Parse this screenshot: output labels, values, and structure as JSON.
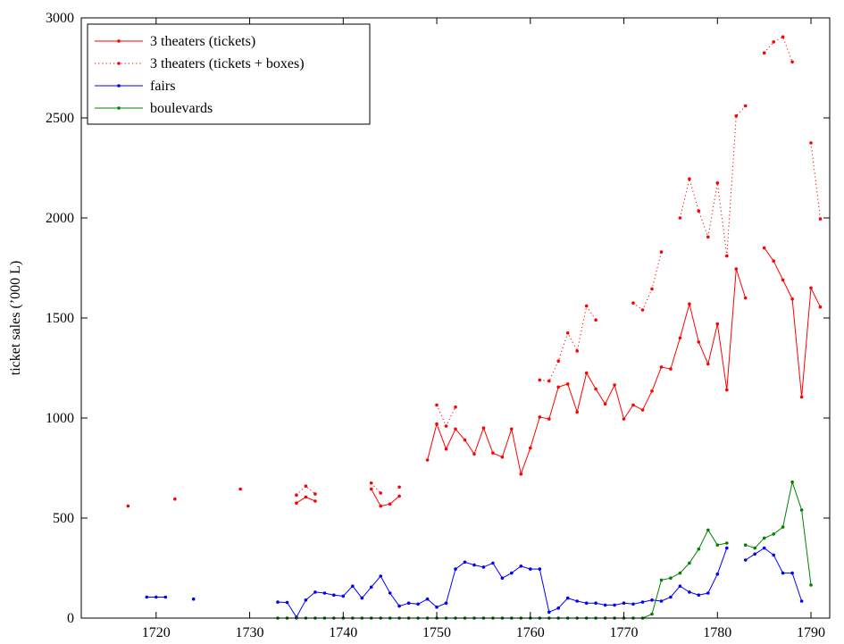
{
  "chart_data": {
    "type": "line",
    "title": "",
    "xlabel": "",
    "ylabel": "ticket sales (’000 L)",
    "xlim": [
      1712,
      1792
    ],
    "ylim": [
      0,
      3000
    ],
    "xticks": [
      1720,
      1730,
      1740,
      1750,
      1760,
      1770,
      1780,
      1790
    ],
    "yticks": [
      0,
      500,
      1000,
      1500,
      2000,
      2500,
      3000
    ],
    "grid": false,
    "legend_position": "top-left",
    "series": [
      {
        "name": "3 theaters (tickets)",
        "color": "#ff0000",
        "style": "solid",
        "points": [
          [
            1735,
            575
          ],
          [
            1736,
            605
          ],
          [
            1737,
            585
          ],
          [
            1743,
            645
          ],
          [
            1744,
            560
          ],
          [
            1745,
            570
          ],
          [
            1746,
            610
          ],
          [
            1749,
            790
          ],
          [
            1750,
            970
          ],
          [
            1751,
            845
          ],
          [
            1752,
            945
          ],
          [
            1753,
            890
          ],
          [
            1754,
            820
          ],
          [
            1755,
            950
          ],
          [
            1756,
            825
          ],
          [
            1757,
            805
          ],
          [
            1758,
            945
          ],
          [
            1759,
            720
          ],
          [
            1760,
            850
          ],
          [
            1761,
            1005
          ],
          [
            1762,
            995
          ],
          [
            1763,
            1155
          ],
          [
            1764,
            1170
          ],
          [
            1765,
            1030
          ],
          [
            1766,
            1225
          ],
          [
            1767,
            1145
          ],
          [
            1768,
            1070
          ],
          [
            1769,
            1165
          ],
          [
            1770,
            995
          ],
          [
            1771,
            1065
          ],
          [
            1772,
            1040
          ],
          [
            1773,
            1135
          ],
          [
            1774,
            1255
          ],
          [
            1775,
            1245
          ],
          [
            1776,
            1400
          ],
          [
            1777,
            1570
          ],
          [
            1778,
            1380
          ],
          [
            1779,
            1270
          ],
          [
            1780,
            1470
          ],
          [
            1781,
            1140
          ],
          [
            1782,
            1745
          ],
          [
            1783,
            1600
          ],
          [
            1785,
            1850
          ],
          [
            1786,
            1785
          ],
          [
            1787,
            1690
          ],
          [
            1788,
            1595
          ],
          [
            1789,
            1105
          ],
          [
            1790,
            1650
          ],
          [
            1791,
            1555
          ]
        ]
      },
      {
        "name": "3 theaters (tickets + boxes)",
        "color": "#ff0000",
        "style": "dotted",
        "points": [
          [
            1717,
            560
          ],
          [
            1722,
            595
          ],
          [
            1729,
            645
          ],
          [
            1735,
            615
          ],
          [
            1736,
            660
          ],
          [
            1737,
            620
          ],
          [
            1743,
            675
          ],
          [
            1744,
            625
          ],
          [
            1746,
            655
          ],
          [
            1750,
            1065
          ],
          [
            1751,
            960
          ],
          [
            1752,
            1055
          ],
          [
            1761,
            1190
          ],
          [
            1762,
            1185
          ],
          [
            1763,
            1285
          ],
          [
            1764,
            1425
          ],
          [
            1765,
            1335
          ],
          [
            1766,
            1560
          ],
          [
            1767,
            1490
          ],
          [
            1771,
            1575
          ],
          [
            1772,
            1540
          ],
          [
            1773,
            1645
          ],
          [
            1774,
            1830
          ],
          [
            1776,
            2000
          ],
          [
            1777,
            2195
          ],
          [
            1778,
            2035
          ],
          [
            1779,
            1905
          ],
          [
            1780,
            2175
          ],
          [
            1781,
            1810
          ],
          [
            1782,
            2510
          ],
          [
            1783,
            2560
          ],
          [
            1785,
            2825
          ],
          [
            1786,
            2880
          ],
          [
            1787,
            2905
          ],
          [
            1788,
            2780
          ],
          [
            1790,
            2375
          ],
          [
            1791,
            1995
          ]
        ]
      },
      {
        "name": "fairs",
        "color": "#0000ff",
        "style": "solid",
        "points": [
          [
            1719,
            105
          ],
          [
            1720,
            105
          ],
          [
            1721,
            105
          ],
          [
            1724,
            95
          ],
          [
            1733,
            80
          ],
          [
            1734,
            78
          ],
          [
            1735,
            5
          ],
          [
            1736,
            90
          ],
          [
            1737,
            130
          ],
          [
            1738,
            125
          ],
          [
            1739,
            115
          ],
          [
            1740,
            110
          ],
          [
            1741,
            160
          ],
          [
            1742,
            100
          ],
          [
            1743,
            155
          ],
          [
            1744,
            210
          ],
          [
            1745,
            125
          ],
          [
            1746,
            60
          ],
          [
            1747,
            75
          ],
          [
            1748,
            70
          ],
          [
            1749,
            95
          ],
          [
            1750,
            55
          ],
          [
            1751,
            75
          ],
          [
            1752,
            245
          ],
          [
            1753,
            280
          ],
          [
            1754,
            265
          ],
          [
            1755,
            255
          ],
          [
            1756,
            275
          ],
          [
            1757,
            200
          ],
          [
            1758,
            225
          ],
          [
            1759,
            260
          ],
          [
            1760,
            245
          ],
          [
            1761,
            245
          ],
          [
            1762,
            30
          ],
          [
            1763,
            50
          ],
          [
            1764,
            100
          ],
          [
            1765,
            85
          ],
          [
            1766,
            75
          ],
          [
            1767,
            75
          ],
          [
            1768,
            65
          ],
          [
            1769,
            65
          ],
          [
            1770,
            75
          ],
          [
            1771,
            70
          ],
          [
            1772,
            80
          ],
          [
            1773,
            90
          ],
          [
            1774,
            85
          ],
          [
            1775,
            105
          ],
          [
            1776,
            160
          ],
          [
            1777,
            130
          ],
          [
            1778,
            115
          ],
          [
            1779,
            125
          ],
          [
            1780,
            220
          ],
          [
            1781,
            350
          ],
          [
            1783,
            290
          ],
          [
            1784,
            320
          ],
          [
            1785,
            350
          ],
          [
            1786,
            315
          ],
          [
            1787,
            225
          ],
          [
            1788,
            225
          ],
          [
            1789,
            85
          ]
        ]
      },
      {
        "name": "boulevards",
        "color": "#008000",
        "style": "solid",
        "points": [
          [
            1733,
            0
          ],
          [
            1734,
            0
          ],
          [
            1735,
            0
          ],
          [
            1736,
            0
          ],
          [
            1737,
            0
          ],
          [
            1738,
            0
          ],
          [
            1739,
            0
          ],
          [
            1740,
            0
          ],
          [
            1741,
            0
          ],
          [
            1742,
            0
          ],
          [
            1743,
            0
          ],
          [
            1744,
            0
          ],
          [
            1745,
            0
          ],
          [
            1746,
            0
          ],
          [
            1747,
            0
          ],
          [
            1748,
            0
          ],
          [
            1749,
            0
          ],
          [
            1750,
            0
          ],
          [
            1751,
            0
          ],
          [
            1752,
            0
          ],
          [
            1753,
            0
          ],
          [
            1754,
            0
          ],
          [
            1755,
            0
          ],
          [
            1756,
            0
          ],
          [
            1757,
            0
          ],
          [
            1758,
            0
          ],
          [
            1759,
            0
          ],
          [
            1760,
            0
          ],
          [
            1761,
            0
          ],
          [
            1762,
            0
          ],
          [
            1763,
            0
          ],
          [
            1764,
            0
          ],
          [
            1765,
            0
          ],
          [
            1766,
            0
          ],
          [
            1767,
            0
          ],
          [
            1768,
            0
          ],
          [
            1769,
            0
          ],
          [
            1770,
            0
          ],
          [
            1771,
            0
          ],
          [
            1772,
            0
          ],
          [
            1773,
            20
          ],
          [
            1774,
            190
          ],
          [
            1775,
            200
          ],
          [
            1776,
            225
          ],
          [
            1777,
            275
          ],
          [
            1778,
            345
          ],
          [
            1779,
            440
          ],
          [
            1780,
            365
          ],
          [
            1781,
            375
          ],
          [
            1783,
            365
          ],
          [
            1784,
            350
          ],
          [
            1785,
            400
          ],
          [
            1786,
            420
          ],
          [
            1787,
            455
          ],
          [
            1788,
            680
          ],
          [
            1789,
            540
          ],
          [
            1790,
            165
          ]
        ]
      }
    ]
  }
}
